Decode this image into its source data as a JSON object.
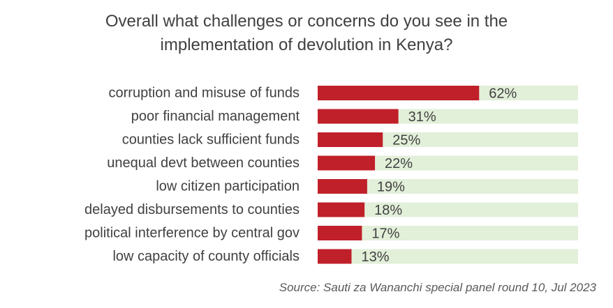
{
  "chart_data": {
    "type": "bar",
    "orientation": "horizontal",
    "title_lines": [
      "Overall what challenges or concerns do you see in the",
      "implementation of devolution in Kenya?"
    ],
    "categories": [
      "corruption and misuse of funds",
      "poor financial management",
      "counties lack sufficient funds",
      "unequal devt between counties",
      "low citizen participation",
      "delayed disbursements to counties",
      "political interference by central gov",
      "low capacity of county officials"
    ],
    "values": [
      62,
      31,
      25,
      22,
      19,
      18,
      17,
      13
    ],
    "value_labels": [
      "62%",
      "31%",
      "25%",
      "22%",
      "19%",
      "18%",
      "17%",
      "13%"
    ],
    "xlim": [
      0,
      100
    ],
    "grid": false,
    "legend": "none",
    "colors": {
      "bar": "#c0202a",
      "track": "#e2efd9"
    },
    "source": "Source: Sauti za Wananchi special panel round 10, Jul 2023"
  }
}
